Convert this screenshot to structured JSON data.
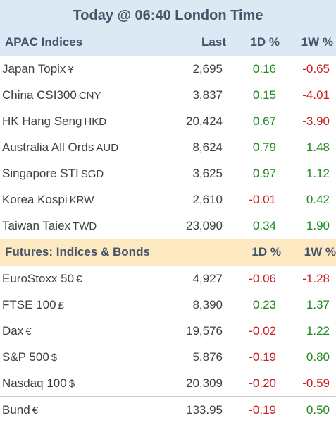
{
  "title": "Today @ 06:40 London Time",
  "apac": {
    "header": {
      "name": "APAC Indices",
      "last": "Last",
      "d1": "1D %",
      "w1": "1W %"
    },
    "rows": [
      {
        "name": "Japan Topix",
        "ccy": "¥",
        "last": "2,695",
        "d1": "0.16",
        "w1": "-0.65"
      },
      {
        "name": "China CSI300",
        "ccy": "CNY",
        "last": "3,837",
        "d1": "0.15",
        "w1": "-4.01"
      },
      {
        "name": "HK Hang Seng",
        "ccy": "HKD",
        "last": "20,424",
        "d1": "0.67",
        "w1": "-3.90"
      },
      {
        "name": "Australia All Ords",
        "ccy": "AUD",
        "last": "8,624",
        "d1": "0.79",
        "w1": "1.48"
      },
      {
        "name": "Singapore STI",
        "ccy": "SGD",
        "last": "3,625",
        "d1": "0.97",
        "w1": "1.12"
      },
      {
        "name": "Korea Kospi",
        "ccy": "KRW",
        "last": "2,610",
        "d1": "-0.01",
        "w1": "0.42"
      },
      {
        "name": "Taiwan Taiex",
        "ccy": "TWD",
        "last": "23,090",
        "d1": "0.34",
        "w1": "1.90"
      }
    ]
  },
  "futures": {
    "header": {
      "name": "Futures: Indices & Bonds",
      "d1": "1D %",
      "w1": "1W %"
    },
    "rows": [
      {
        "name": "EuroStoxx 50",
        "ccy": "€",
        "last": "4,927",
        "d1": "-0.06",
        "w1": "-1.28"
      },
      {
        "name": "FTSE 100",
        "ccy": "£",
        "last": "8,390",
        "d1": "0.23",
        "w1": "1.37"
      },
      {
        "name": "Dax",
        "ccy": "€",
        "last": "19,576",
        "d1": "-0.02",
        "w1": "1.22"
      },
      {
        "name": "S&P 500",
        "ccy": "$",
        "last": "5,876",
        "d1": "-0.19",
        "w1": "0.80"
      },
      {
        "name": "Nasdaq 100",
        "ccy": "$",
        "last": "20,309",
        "d1": "-0.20",
        "w1": "-0.59"
      },
      {
        "name": "Bund",
        "ccy": "€",
        "last": "133.95",
        "d1": "-0.19",
        "w1": "0.50"
      }
    ]
  },
  "colors": {
    "positive": "#1e8a1e",
    "negative": "#cc1f1f",
    "header_blue": "#dce8f4",
    "header_orange": "#fde9c2"
  }
}
